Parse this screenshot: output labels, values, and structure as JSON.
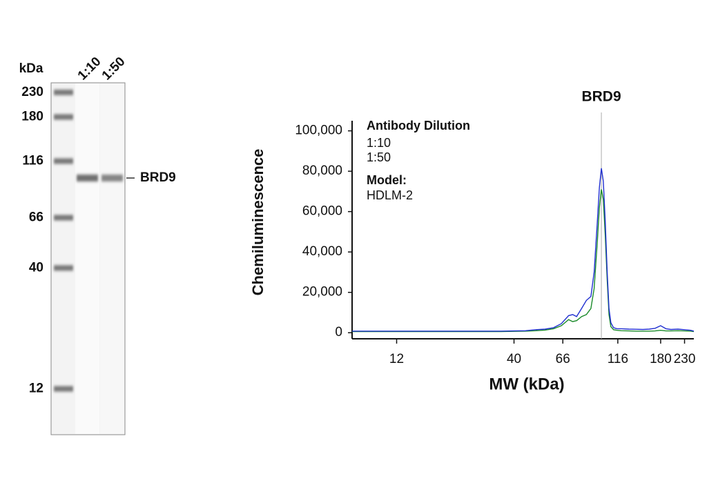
{
  "blot": {
    "unit_label": "kDa",
    "lanes": [
      "1:10",
      "1:50"
    ],
    "markers": [
      230,
      180,
      116,
      66,
      40,
      12
    ],
    "band_label": "BRD9"
  },
  "chart_data": {
    "type": "line",
    "ylabel": "Chemiluminescence",
    "xlabel": "MW (kDa)",
    "annotation": {
      "label": "BRD9",
      "x": 98
    },
    "legend_title": "Antibody Dilution",
    "model_label": "Model:",
    "model": "HDLM-2",
    "xscale": "log",
    "xlim": [
      7.6,
      253
    ],
    "xticks": [
      12,
      40,
      66,
      116,
      180,
      230
    ],
    "ylim": [
      -3000,
      105000
    ],
    "yticks": [
      0,
      {
        "value": 20000,
        "label": "20,000"
      },
      {
        "value": 40000,
        "label": "40,000"
      },
      {
        "value": 60000,
        "label": "60,000"
      },
      {
        "value": 80000,
        "label": "80,000"
      },
      {
        "value": 100000,
        "label": "100,000"
      }
    ],
    "x": [
      7.6,
      10,
      15,
      20,
      25,
      30,
      35,
      40,
      45,
      50,
      55,
      60,
      65,
      70,
      73,
      76,
      80,
      84,
      88,
      91,
      94,
      96,
      98,
      100,
      102,
      104,
      106,
      108,
      111,
      115,
      120,
      130,
      140,
      150,
      160,
      170,
      180,
      190,
      200,
      215,
      230,
      245,
      253
    ],
    "series": [
      {
        "name": "1:10",
        "color": "#1f2fd0",
        "label_color": "#3a4ea8",
        "values": [
          800,
          800,
          800,
          800,
          800,
          800,
          800,
          900,
          1000,
          1500,
          1800,
          2500,
          4500,
          8500,
          9000,
          8000,
          12000,
          16000,
          18000,
          30000,
          55000,
          72000,
          81500,
          75000,
          55000,
          30000,
          12000,
          5000,
          2500,
          2000,
          2000,
          1800,
          1700,
          1600,
          1800,
          2200,
          3500,
          2000,
          1600,
          1800,
          1500,
          1200,
          800
        ]
      },
      {
        "name": "1:50",
        "color": "#1a8a2a",
        "label_color": "#1f8a35",
        "values": [
          600,
          600,
          600,
          600,
          600,
          600,
          600,
          700,
          800,
          1000,
          1300,
          2000,
          3500,
          6500,
          5500,
          6000,
          8000,
          9000,
          12000,
          22000,
          45000,
          62000,
          71000,
          66000,
          48000,
          26000,
          9000,
          3000,
          1500,
          1200,
          1000,
          900,
          800,
          800,
          800,
          900,
          1200,
          900,
          900,
          1000,
          900,
          800,
          600
        ]
      }
    ]
  }
}
